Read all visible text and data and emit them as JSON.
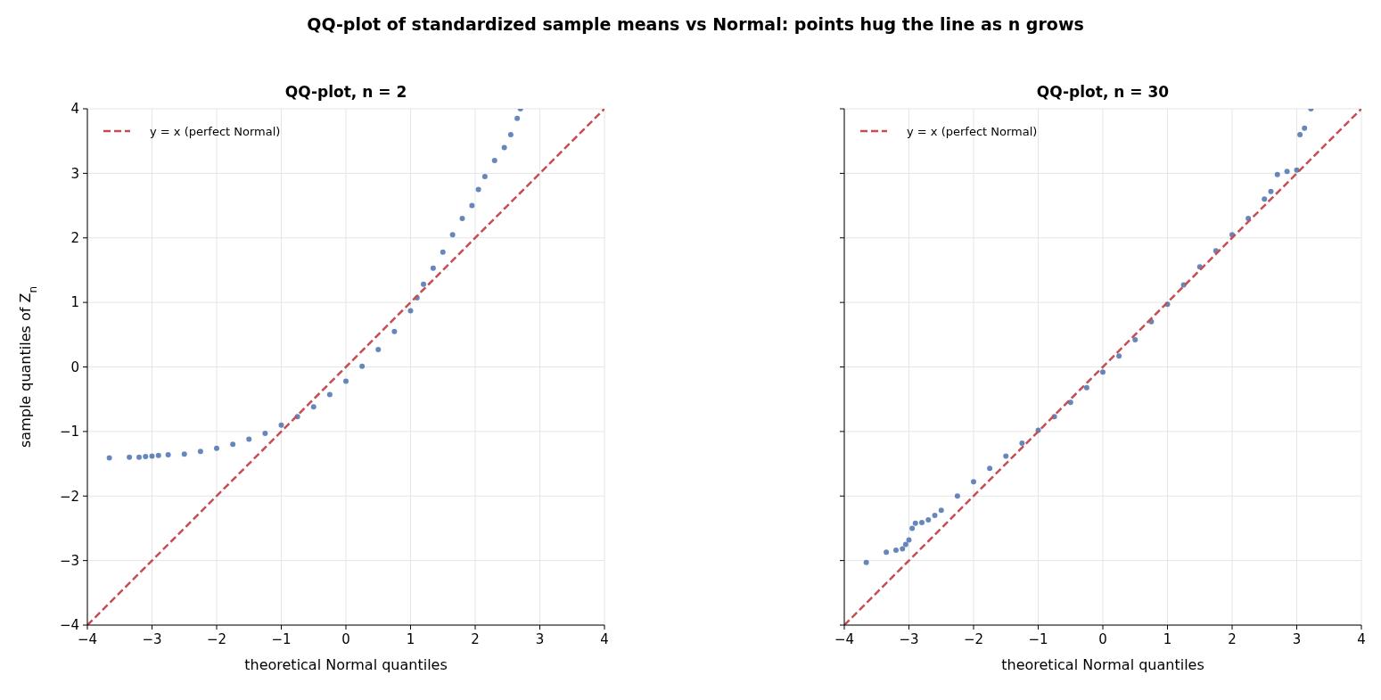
{
  "chart_data": [
    {
      "type": "scatter",
      "title": "QQ-plot, n = 2",
      "xlabel": "theoretical Normal quantiles",
      "ylabel": "sample quantiles of Z$_{n}$",
      "annotations": [
        "QQ-plot of standardized sample means vs Normal: points hug the line as n grows"
      ],
      "xlim": [
        -4,
        4
      ],
      "ylim": [
        -4,
        4
      ],
      "xticks": [
        {
          "value": -4,
          "label": "−4"
        },
        {
          "value": -3,
          "label": "−3"
        },
        {
          "value": -2,
          "label": "−2"
        },
        {
          "value": -1,
          "label": "−1"
        },
        0,
        1,
        2,
        3,
        4
      ],
      "yticks": [
        {
          "value": -4,
          "label": "−4"
        },
        {
          "value": -3,
          "label": "−3"
        },
        {
          "value": -2,
          "label": "−2"
        },
        {
          "value": -1,
          "label": "−1"
        },
        0,
        1,
        2,
        3,
        4
      ],
      "grid": true,
      "legend": "top left",
      "series": [
        {
          "color": "#4c72b0",
          "marker": "circle",
          "x": [
            -3.66,
            -3.35,
            -3.2,
            -3.1,
            -3.0,
            -2.9,
            -2.75,
            -2.5,
            -2.25,
            -2.0,
            -1.75,
            -1.5,
            -1.25,
            -1.0,
            -0.75,
            -0.5,
            -0.25,
            0,
            0.25,
            0.5,
            0.75,
            1.0,
            1.1,
            1.2,
            1.35,
            1.5,
            1.65,
            1.8,
            1.95,
            2.05,
            2.15,
            2.3,
            2.45,
            2.55,
            2.65,
            2.7
          ],
          "values": [
            -1.41,
            -1.4,
            -1.4,
            -1.39,
            -1.38,
            -1.37,
            -1.36,
            -1.35,
            -1.31,
            -1.26,
            -1.2,
            -1.12,
            -1.03,
            -0.9,
            -0.77,
            -0.62,
            -0.43,
            -0.22,
            0.01,
            0.27,
            0.55,
            0.87,
            1.07,
            1.28,
            1.53,
            1.78,
            2.05,
            2.3,
            2.5,
            2.75,
            2.95,
            3.2,
            3.4,
            3.6,
            3.85,
            4.0
          ]
        },
        {
          "type": "line",
          "name": "y = x (perfect Normal)",
          "color": "#c44e52",
          "line_style": "dashed",
          "x": [
            -4,
            4
          ],
          "values": [
            -4,
            4
          ]
        }
      ]
    },
    {
      "type": "scatter",
      "title": "QQ-plot, n = 30",
      "xlabel": "theoretical Normal quantiles",
      "tick_labels": "x",
      "xlim": [
        -4,
        4
      ],
      "ylim": [
        -4,
        4
      ],
      "xticks": [
        {
          "value": -4,
          "label": "−4"
        },
        {
          "value": -3,
          "label": "−3"
        },
        {
          "value": -2,
          "label": "−2"
        },
        {
          "value": -1,
          "label": "−1"
        },
        0,
        1,
        2,
        3,
        4
      ],
      "yticks": [
        -4,
        -3,
        -2,
        -1,
        0,
        1,
        2,
        3,
        4
      ],
      "grid": true,
      "legend": "top left",
      "series": [
        {
          "color": "#4c72b0",
          "marker": "circle",
          "x": [
            -3.66,
            -3.35,
            -3.2,
            -3.1,
            -3.05,
            -3.0,
            -2.95,
            -2.9,
            -2.8,
            -2.7,
            -2.6,
            -2.5,
            -2.25,
            -2.0,
            -1.75,
            -1.5,
            -1.25,
            -1.0,
            -0.75,
            -0.5,
            -0.25,
            0,
            0.25,
            0.5,
            0.75,
            1.0,
            1.25,
            1.5,
            1.75,
            2.0,
            2.25,
            2.5,
            2.6,
            2.7,
            2.85,
            3.0,
            3.05,
            3.12,
            3.22
          ],
          "values": [
            -3.03,
            -2.87,
            -2.84,
            -2.82,
            -2.75,
            -2.68,
            -2.5,
            -2.42,
            -2.41,
            -2.37,
            -2.3,
            -2.22,
            -2.0,
            -1.78,
            -1.57,
            -1.38,
            -1.18,
            -0.98,
            -0.77,
            -0.55,
            -0.32,
            -0.08,
            0.17,
            0.42,
            0.7,
            0.97,
            1.27,
            1.55,
            1.8,
            2.05,
            2.3,
            2.6,
            2.72,
            2.98,
            3.03,
            3.05,
            3.6,
            3.7,
            4.0
          ]
        },
        {
          "type": "line",
          "name": "y = x (perfect Normal)",
          "color": "#c44e52",
          "line_style": "dashed",
          "x": [
            -4,
            4
          ],
          "values": [
            -4,
            4
          ]
        }
      ]
    }
  ]
}
